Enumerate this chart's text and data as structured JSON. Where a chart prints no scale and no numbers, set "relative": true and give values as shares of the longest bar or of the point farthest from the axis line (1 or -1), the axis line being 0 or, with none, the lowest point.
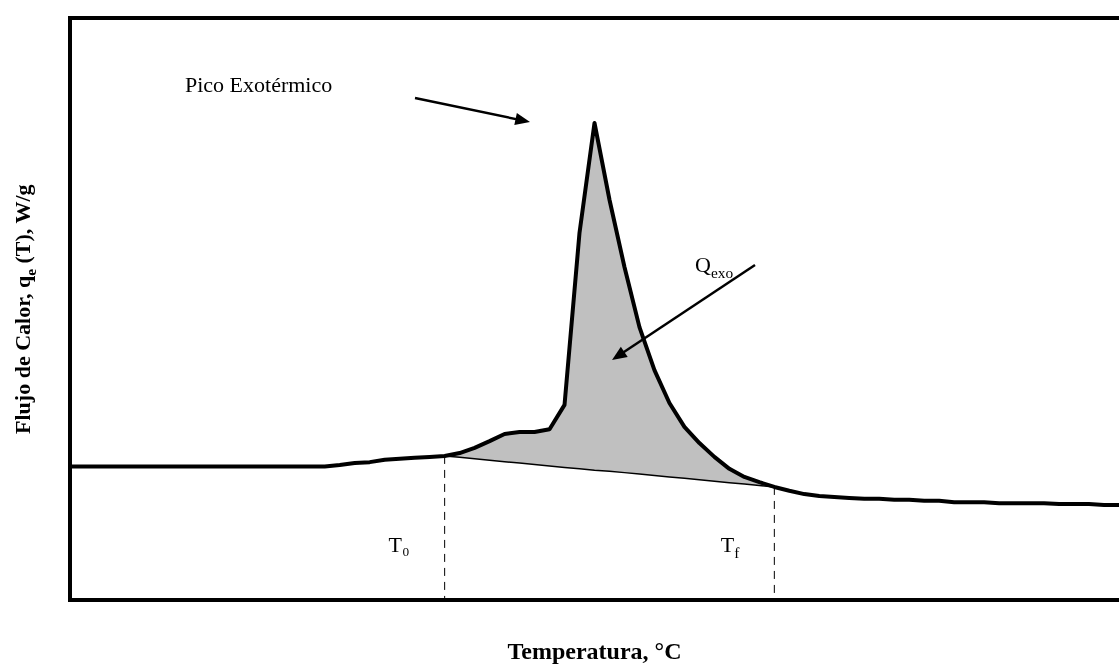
{
  "chart_data": {
    "type": "line",
    "relative": true,
    "xlabel": "Temperatura, °C",
    "ylabel": "Flujo de Calor, q$_{e}$ (T), W/g",
    "annotations": [
      "Pico Exotérmico",
      "Q$_{exo}$",
      "T₀",
      "T$_{f}$"
    ],
    "categories": [
      null,
      null,
      null,
      null,
      null,
      null,
      null,
      null,
      null,
      null,
      null,
      null,
      null,
      null,
      null,
      null,
      null,
      null,
      null,
      null,
      null,
      null,
      null,
      null,
      null,
      null,
      null,
      null,
      null,
      null,
      null,
      null,
      null,
      null,
      null,
      null,
      null,
      null,
      null,
      null,
      null,
      null,
      null,
      null,
      null,
      null,
      null,
      null,
      null,
      null,
      null,
      null,
      null,
      null,
      null,
      null,
      null,
      null,
      null,
      null,
      null,
      null,
      null,
      null,
      null,
      null,
      null,
      null,
      null,
      null,
      null
    ],
    "series": [
      {
        "type": "area",
        "color": "#c0c0c0",
        "values": [
          null,
          null,
          null,
          null,
          null,
          null,
          null,
          null,
          null,
          null,
          null,
          null,
          null,
          null,
          null,
          null,
          null,
          null,
          null,
          null,
          null,
          null,
          null,
          null,
          null,
          0.302,
          0.308,
          0.319,
          0.333,
          0.348,
          0.352,
          0.352,
          0.358,
          0.409,
          0.77,
          1,
          0.839,
          0.698,
          0.572,
          0.482,
          0.413,
          0.363,
          0.329,
          0.3,
          0.275,
          0.258,
          0.247,
          0.237,
          null,
          null,
          null,
          null,
          null,
          null,
          null,
          null,
          null,
          null,
          null,
          null,
          null,
          null,
          null,
          null,
          null,
          null,
          null,
          null,
          null,
          null,
          null
        ]
      },
      {
        "type": "line",
        "color": "#000000",
        "values": [
          null,
          null,
          null,
          null,
          null,
          null,
          null,
          null,
          null,
          null,
          null,
          null,
          null,
          null,
          null,
          null,
          null,
          null,
          null,
          null,
          null,
          null,
          null,
          null,
          null,
          0.302,
          0.299,
          0.296,
          0.293,
          0.29,
          0.287,
          0.284,
          0.281,
          0.278,
          0.275,
          0.272,
          0.27,
          0.267,
          0.264,
          0.261,
          0.258,
          0.255,
          0.252,
          0.249,
          0.246,
          0.243,
          0.24,
          0.237,
          null,
          null,
          null,
          null,
          null,
          null,
          null,
          null,
          null,
          null,
          null,
          null,
          null,
          null,
          null,
          null,
          null,
          null,
          null,
          null,
          null,
          null,
          null
        ]
      },
      {
        "color": "#000000",
        "values": [
          0.28,
          0.28,
          0.28,
          0.28,
          0.28,
          0.28,
          0.28,
          0.28,
          0.28,
          0.28,
          0.28,
          0.28,
          0.28,
          0.28,
          0.28,
          0.28,
          0.28,
          0.28,
          0.283,
          0.287,
          0.289,
          0.294,
          0.296,
          0.298,
          0.3,
          0.302,
          0.308,
          0.319,
          0.333,
          0.348,
          0.352,
          0.352,
          0.358,
          0.409,
          0.77,
          1,
          0.839,
          0.698,
          0.572,
          0.482,
          0.413,
          0.363,
          0.329,
          0.3,
          0.275,
          0.258,
          0.247,
          0.237,
          0.229,
          0.222,
          0.218,
          0.216,
          0.214,
          0.212,
          0.212,
          0.21,
          0.21,
          0.208,
          0.208,
          0.205,
          0.205,
          0.205,
          0.203,
          0.203,
          0.203,
          0.203,
          0.201,
          0.201,
          0.201,
          0.199,
          0.199
        ]
      }
    ],
    "legend": false,
    "marker": "none",
    "line_style": "solid"
  }
}
